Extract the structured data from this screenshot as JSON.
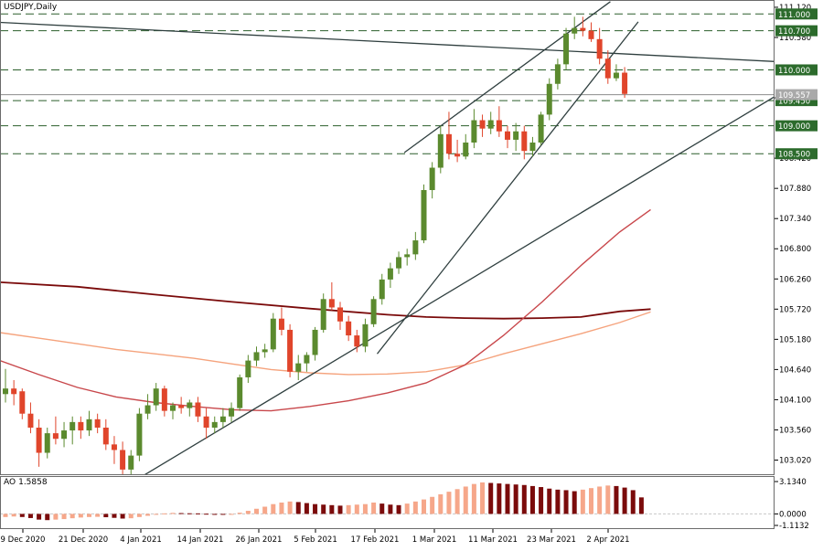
{
  "symbol_label": "USDJPY,Daily",
  "ao_label": "AO",
  "ao_value": "1.5858",
  "colors": {
    "background": "#ffffff",
    "bull_candle": "#5b8a2e",
    "bear_candle": "#e0452b",
    "ma_fast": "#c8474b",
    "ma_mid": "#f5a37d",
    "ma_slow": "#7a0a0a",
    "trendline": "#2f3f3f",
    "level_line": "#2b5f2b",
    "level_label_bg": "#2c6b2c",
    "ao_up": "#f6a78a",
    "ao_down": "#7b0b0b"
  },
  "chart_data": [
    {
      "type": "candlestick",
      "title": "USDJPY,Daily",
      "x_ticks": [
        "9 Dec 2020",
        "21 Dec 2020",
        "4 Jan 2021",
        "14 Jan 2021",
        "26 Jan 2021",
        "5 Feb 2021",
        "17 Feb 2021",
        "1 Mar 2021",
        "11 Mar 2021",
        "23 Mar 2021",
        "2 Apr 2021"
      ],
      "y_ticks": [
        "111.120",
        "110.580",
        "109.500",
        "108.420",
        "107.880",
        "107.340",
        "106.800",
        "106.260",
        "105.720",
        "105.180",
        "104.640",
        "104.100",
        "103.560",
        "103.020"
      ],
      "ylim": [
        102.75,
        111.25
      ],
      "current_price": "109.557",
      "horizontal_levels": [
        {
          "label": "111.000",
          "value": 111.0
        },
        {
          "label": "110.700",
          "value": 110.7
        },
        {
          "label": "110.000",
          "value": 110.0
        },
        {
          "label": "109.450",
          "value": 109.45
        },
        {
          "label": "109.000",
          "value": 109.0
        },
        {
          "label": "108.500",
          "value": 108.5
        }
      ],
      "candles": [
        {
          "o": 104.2,
          "h": 104.65,
          "l": 104.05,
          "c": 104.3
        },
        {
          "o": 104.3,
          "h": 104.45,
          "l": 104.0,
          "c": 104.2
        },
        {
          "o": 104.25,
          "h": 104.3,
          "l": 103.75,
          "c": 103.85
        },
        {
          "o": 103.85,
          "h": 104.05,
          "l": 103.5,
          "c": 103.6
        },
        {
          "o": 103.6,
          "h": 103.75,
          "l": 102.9,
          "c": 103.15
        },
        {
          "o": 103.15,
          "h": 103.6,
          "l": 103.05,
          "c": 103.5
        },
        {
          "o": 103.5,
          "h": 103.8,
          "l": 103.3,
          "c": 103.4
        },
        {
          "o": 103.4,
          "h": 103.7,
          "l": 103.25,
          "c": 103.55
        },
        {
          "o": 103.55,
          "h": 103.8,
          "l": 103.3,
          "c": 103.7
        },
        {
          "o": 103.7,
          "h": 103.8,
          "l": 103.4,
          "c": 103.55
        },
        {
          "o": 103.55,
          "h": 103.9,
          "l": 103.45,
          "c": 103.75
        },
        {
          "o": 103.75,
          "h": 103.85,
          "l": 103.5,
          "c": 103.6
        },
        {
          "o": 103.6,
          "h": 103.75,
          "l": 103.2,
          "c": 103.3
        },
        {
          "o": 103.3,
          "h": 103.45,
          "l": 102.95,
          "c": 103.2
        },
        {
          "o": 103.2,
          "h": 103.35,
          "l": 102.7,
          "c": 102.85
        },
        {
          "o": 102.85,
          "h": 103.2,
          "l": 102.75,
          "c": 103.1
        },
        {
          "o": 103.1,
          "h": 103.95,
          "l": 103.0,
          "c": 103.85
        },
        {
          "o": 103.85,
          "h": 104.2,
          "l": 103.75,
          "c": 104.0
        },
        {
          "o": 104.0,
          "h": 104.4,
          "l": 103.9,
          "c": 104.3
        },
        {
          "o": 104.3,
          "h": 104.35,
          "l": 103.8,
          "c": 103.9
        },
        {
          "o": 103.9,
          "h": 104.05,
          "l": 103.75,
          "c": 104.0
        },
        {
          "o": 104.0,
          "h": 104.15,
          "l": 103.85,
          "c": 103.95
        },
        {
          "o": 103.95,
          "h": 104.1,
          "l": 103.8,
          "c": 104.05
        },
        {
          "o": 104.05,
          "h": 104.15,
          "l": 103.7,
          "c": 103.8
        },
        {
          "o": 103.8,
          "h": 103.95,
          "l": 103.4,
          "c": 103.6
        },
        {
          "o": 103.6,
          "h": 103.8,
          "l": 103.5,
          "c": 103.7
        },
        {
          "o": 103.7,
          "h": 103.95,
          "l": 103.6,
          "c": 103.8
        },
        {
          "o": 103.8,
          "h": 104.05,
          "l": 103.7,
          "c": 103.95
        },
        {
          "o": 103.95,
          "h": 104.55,
          "l": 103.9,
          "c": 104.5
        },
        {
          "o": 104.5,
          "h": 104.9,
          "l": 104.4,
          "c": 104.8
        },
        {
          "o": 104.8,
          "h": 105.05,
          "l": 104.7,
          "c": 104.95
        },
        {
          "o": 104.95,
          "h": 105.1,
          "l": 104.85,
          "c": 105.0
        },
        {
          "o": 105.0,
          "h": 105.65,
          "l": 104.95,
          "c": 105.55
        },
        {
          "o": 105.55,
          "h": 105.75,
          "l": 105.25,
          "c": 105.35
        },
        {
          "o": 105.35,
          "h": 105.45,
          "l": 104.5,
          "c": 104.6
        },
        {
          "o": 104.6,
          "h": 104.9,
          "l": 104.45,
          "c": 104.75
        },
        {
          "o": 104.75,
          "h": 104.95,
          "l": 104.6,
          "c": 104.9
        },
        {
          "o": 104.9,
          "h": 105.4,
          "l": 104.8,
          "c": 105.35
        },
        {
          "o": 105.35,
          "h": 106.0,
          "l": 105.3,
          "c": 105.9
        },
        {
          "o": 105.9,
          "h": 106.2,
          "l": 105.7,
          "c": 105.75
        },
        {
          "o": 105.75,
          "h": 105.85,
          "l": 105.35,
          "c": 105.5
        },
        {
          "o": 105.5,
          "h": 105.6,
          "l": 105.15,
          "c": 105.25
        },
        {
          "o": 105.25,
          "h": 105.35,
          "l": 104.95,
          "c": 105.05
        },
        {
          "o": 105.05,
          "h": 105.55,
          "l": 104.95,
          "c": 105.45
        },
        {
          "o": 105.45,
          "h": 105.95,
          "l": 105.4,
          "c": 105.9
        },
        {
          "o": 105.9,
          "h": 106.35,
          "l": 105.8,
          "c": 106.25
        },
        {
          "o": 106.25,
          "h": 106.55,
          "l": 106.1,
          "c": 106.45
        },
        {
          "o": 106.45,
          "h": 106.75,
          "l": 106.35,
          "c": 106.65
        },
        {
          "o": 106.65,
          "h": 106.8,
          "l": 106.5,
          "c": 106.7
        },
        {
          "o": 106.7,
          "h": 107.1,
          "l": 106.6,
          "c": 106.95
        },
        {
          "o": 106.95,
          "h": 107.95,
          "l": 106.9,
          "c": 107.85
        },
        {
          "o": 107.85,
          "h": 108.35,
          "l": 107.7,
          "c": 108.25
        },
        {
          "o": 108.25,
          "h": 109.0,
          "l": 108.15,
          "c": 108.85
        },
        {
          "o": 108.85,
          "h": 109.25,
          "l": 108.4,
          "c": 108.5
        },
        {
          "o": 108.5,
          "h": 108.75,
          "l": 108.35,
          "c": 108.45
        },
        {
          "o": 108.45,
          "h": 108.85,
          "l": 108.4,
          "c": 108.7
        },
        {
          "o": 108.7,
          "h": 109.3,
          "l": 108.6,
          "c": 109.1
        },
        {
          "o": 109.1,
          "h": 109.2,
          "l": 108.8,
          "c": 108.95
        },
        {
          "o": 108.95,
          "h": 109.25,
          "l": 108.85,
          "c": 109.1
        },
        {
          "o": 109.1,
          "h": 109.35,
          "l": 108.8,
          "c": 108.9
        },
        {
          "o": 108.9,
          "h": 109.0,
          "l": 108.6,
          "c": 108.75
        },
        {
          "o": 108.75,
          "h": 109.05,
          "l": 108.55,
          "c": 108.9
        },
        {
          "o": 108.9,
          "h": 109.0,
          "l": 108.4,
          "c": 108.55
        },
        {
          "o": 108.55,
          "h": 108.8,
          "l": 108.45,
          "c": 108.7
        },
        {
          "o": 108.7,
          "h": 109.25,
          "l": 108.65,
          "c": 109.2
        },
        {
          "o": 109.2,
          "h": 109.85,
          "l": 109.1,
          "c": 109.75
        },
        {
          "o": 109.75,
          "h": 110.2,
          "l": 109.65,
          "c": 110.1
        },
        {
          "o": 110.1,
          "h": 110.75,
          "l": 110.0,
          "c": 110.65
        },
        {
          "o": 110.65,
          "h": 110.95,
          "l": 110.55,
          "c": 110.75
        },
        {
          "o": 110.75,
          "h": 110.95,
          "l": 110.6,
          "c": 110.7
        },
        {
          "o": 110.7,
          "h": 110.85,
          "l": 110.5,
          "c": 110.55
        },
        {
          "o": 110.55,
          "h": 110.75,
          "l": 110.1,
          "c": 110.2
        },
        {
          "o": 110.2,
          "h": 110.35,
          "l": 109.75,
          "c": 109.85
        },
        {
          "o": 109.85,
          "h": 110.1,
          "l": 109.8,
          "c": 109.95
        },
        {
          "o": 109.95,
          "h": 110.05,
          "l": 109.5,
          "c": 109.57
        }
      ],
      "moving_averages": [
        {
          "color_key": "ma_slow",
          "x_frac": [
            0.0,
            0.1,
            0.2,
            0.3,
            0.4,
            0.5,
            0.55,
            0.6,
            0.65,
            0.7,
            0.75,
            0.8,
            0.84
          ],
          "values": [
            106.2,
            106.12,
            105.98,
            105.85,
            105.73,
            105.62,
            105.58,
            105.56,
            105.55,
            105.56,
            105.58,
            105.68,
            105.72
          ]
        },
        {
          "color_key": "ma_mid",
          "x_frac": [
            0.0,
            0.05,
            0.1,
            0.15,
            0.2,
            0.25,
            0.3,
            0.35,
            0.4,
            0.45,
            0.5,
            0.55,
            0.6,
            0.65,
            0.7,
            0.75,
            0.8,
            0.84
          ],
          "values": [
            105.3,
            105.2,
            105.1,
            105.0,
            104.92,
            104.84,
            104.74,
            104.64,
            104.58,
            104.55,
            104.56,
            104.6,
            104.72,
            104.92,
            105.1,
            105.28,
            105.48,
            105.67
          ]
        },
        {
          "color_key": "ma_fast",
          "x_frac": [
            0.0,
            0.05,
            0.1,
            0.15,
            0.2,
            0.25,
            0.3,
            0.35,
            0.4,
            0.45,
            0.5,
            0.55,
            0.6,
            0.65,
            0.7,
            0.75,
            0.8,
            0.84
          ],
          "values": [
            104.8,
            104.55,
            104.32,
            104.15,
            104.05,
            103.98,
            103.92,
            103.9,
            103.98,
            104.08,
            104.22,
            104.4,
            104.72,
            105.25,
            105.85,
            106.5,
            107.1,
            107.5
          ]
        }
      ],
      "trendlines": [
        {
          "x1_frac": 0.0,
          "y1": 110.85,
          "x2_frac": 1.0,
          "y2": 110.15
        },
        {
          "x1_frac": 0.174,
          "y1": 102.65,
          "x2_frac": 1.0,
          "y2": 109.52
        },
        {
          "x1_frac": 0.487,
          "y1": 104.92,
          "x2_frac": 0.824,
          "y2": 110.86
        },
        {
          "x1_frac": 0.522,
          "y1": 108.52,
          "x2_frac": 0.788,
          "y2": 111.22
        }
      ]
    },
    {
      "type": "bar",
      "title": "AO 1.5858",
      "y_ticks": [
        "3.1340",
        "0.0000",
        "-1.1132"
      ],
      "ylim": [
        -1.1132,
        3.134
      ],
      "values": [
        -0.3,
        -0.25,
        -0.3,
        -0.4,
        -0.55,
        -0.6,
        -0.55,
        -0.5,
        -0.42,
        -0.35,
        -0.3,
        -0.28,
        -0.32,
        -0.38,
        -0.45,
        -0.42,
        -0.3,
        -0.18,
        -0.05,
        0.05,
        0.1,
        0.08,
        0.06,
        0.05,
        0.02,
        0.0,
        -0.02,
        0.0,
        0.12,
        0.3,
        0.5,
        0.7,
        0.95,
        1.1,
        1.2,
        1.15,
        1.05,
        0.95,
        0.9,
        0.85,
        0.8,
        0.85,
        0.9,
        0.95,
        1.1,
        1.0,
        0.9,
        0.85,
        1.0,
        1.2,
        1.4,
        1.65,
        1.9,
        2.15,
        2.4,
        2.65,
        2.9,
        3.05,
        3.0,
        2.95,
        2.9,
        2.85,
        2.8,
        2.7,
        2.6,
        2.45,
        2.35,
        2.3,
        2.2,
        2.35,
        2.5,
        2.65,
        2.75,
        2.7,
        2.55,
        2.3,
        1.6
      ]
    }
  ]
}
